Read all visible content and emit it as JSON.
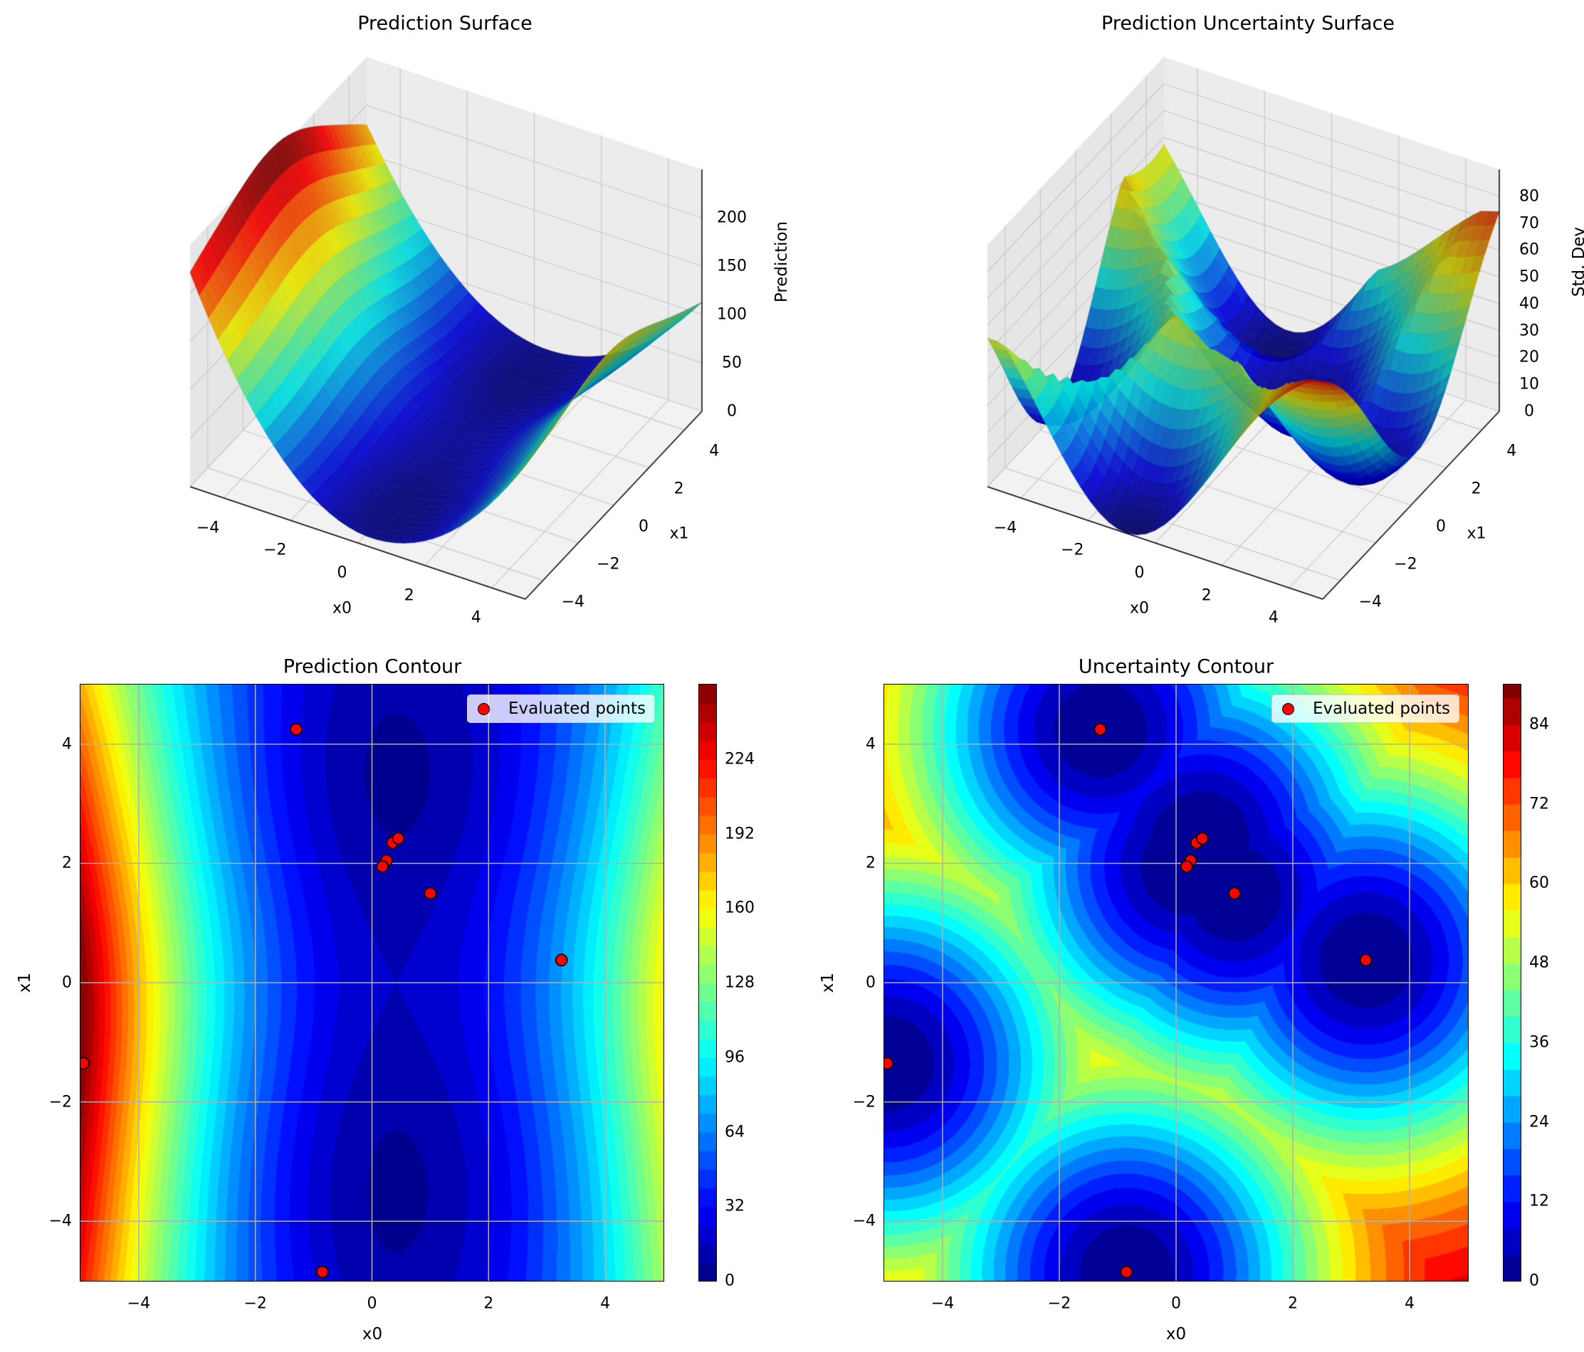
{
  "colors": {
    "point_fill": "#ff0000",
    "point_edge": "#000000",
    "grid": "#b0b0b0",
    "pane": "#f2f2f2"
  },
  "chart_data": [
    {
      "type": "surface",
      "title": "Prediction Surface",
      "xlabel": "x0",
      "ylabel": "x1",
      "zlabel": "Prediction",
      "xticks": [
        "−4",
        "−2",
        "0",
        "2",
        "4"
      ],
      "xtick_values": [
        -4,
        -2,
        0,
        2,
        4
      ],
      "yticks": [
        "−4",
        "−2",
        "0",
        "2",
        "4"
      ],
      "ytick_values": [
        -4,
        -2,
        0,
        2,
        4
      ],
      "zticks": [
        "0",
        "50",
        "100",
        "150",
        "200"
      ],
      "ztick_values": [
        0,
        50,
        100,
        150,
        200
      ],
      "xlim": [
        -5,
        5
      ],
      "ylim": [
        -5,
        5
      ],
      "zlim": [
        0,
        250
      ],
      "colormap": "jet"
    },
    {
      "type": "surface",
      "title": "Prediction Uncertainty Surface",
      "xlabel": "x0",
      "ylabel": "x1",
      "zlabel": "Std. Dev",
      "xticks": [
        "−4",
        "−2",
        "0",
        "2",
        "4"
      ],
      "xtick_values": [
        -4,
        -2,
        0,
        2,
        4
      ],
      "yticks": [
        "−4",
        "−2",
        "0",
        "2",
        "4"
      ],
      "ytick_values": [
        -4,
        -2,
        0,
        2,
        4
      ],
      "zticks": [
        "0",
        "10",
        "20",
        "30",
        "40",
        "50",
        "60",
        "70",
        "80"
      ],
      "ztick_values": [
        0,
        10,
        20,
        30,
        40,
        50,
        60,
        70,
        80
      ],
      "xlim": [
        -5,
        5
      ],
      "ylim": [
        -5,
        5
      ],
      "zlim": [
        0,
        90
      ],
      "colormap": "jet"
    },
    {
      "type": "contour",
      "title": "Prediction Contour",
      "xlabel": "x0",
      "ylabel": "x1",
      "xticks": [
        "−4",
        "−2",
        "0",
        "2",
        "4"
      ],
      "xtick_values": [
        -4,
        -2,
        0,
        2,
        4
      ],
      "yticks": [
        "−4",
        "−2",
        "0",
        "2",
        "4"
      ],
      "ytick_values": [
        -4,
        -2,
        0,
        2,
        4
      ],
      "xlim": [
        -5,
        5
      ],
      "ylim": [
        -5,
        5
      ],
      "colorbar_ticks": [
        "0",
        "32",
        "64",
        "96",
        "128",
        "160",
        "192",
        "224"
      ],
      "colorbar_tick_values": [
        0,
        32,
        64,
        96,
        128,
        160,
        192,
        224
      ],
      "clim": [
        0,
        256
      ],
      "level_step": 8,
      "legend": "Evaluated points",
      "legend_loc": "upper right",
      "grid": true,
      "points": [
        [
          -1.3,
          4.25
        ],
        [
          0.35,
          2.35
        ],
        [
          0.45,
          2.42
        ],
        [
          0.25,
          2.05
        ],
        [
          0.18,
          1.95
        ],
        [
          1.0,
          1.5
        ],
        [
          3.25,
          0.38
        ],
        [
          -4.95,
          -1.35
        ],
        [
          -0.85,
          -4.85
        ]
      ]
    },
    {
      "type": "contour",
      "title": "Uncertainty Contour",
      "xlabel": "x0",
      "ylabel": "x1",
      "xticks": [
        "−4",
        "−2",
        "0",
        "2",
        "4"
      ],
      "xtick_values": [
        -4,
        -2,
        0,
        2,
        4
      ],
      "yticks": [
        "−4",
        "−2",
        "0",
        "2",
        "4"
      ],
      "ytick_values": [
        -4,
        -2,
        0,
        2,
        4
      ],
      "xlim": [
        -5,
        5
      ],
      "ylim": [
        -5,
        5
      ],
      "colorbar_ticks": [
        "0",
        "12",
        "24",
        "36",
        "48",
        "60",
        "72",
        "84"
      ],
      "colorbar_tick_values": [
        0,
        12,
        24,
        36,
        48,
        60,
        72,
        84
      ],
      "clim": [
        0,
        90
      ],
      "level_step": 4,
      "legend": "Evaluated points",
      "legend_loc": "upper right",
      "grid": true,
      "points": [
        [
          -1.3,
          4.25
        ],
        [
          0.35,
          2.35
        ],
        [
          0.45,
          2.42
        ],
        [
          0.25,
          2.05
        ],
        [
          0.18,
          1.95
        ],
        [
          1.0,
          1.5
        ],
        [
          3.25,
          0.38
        ],
        [
          -4.95,
          -1.35
        ],
        [
          -0.85,
          -4.85
        ]
      ]
    }
  ]
}
